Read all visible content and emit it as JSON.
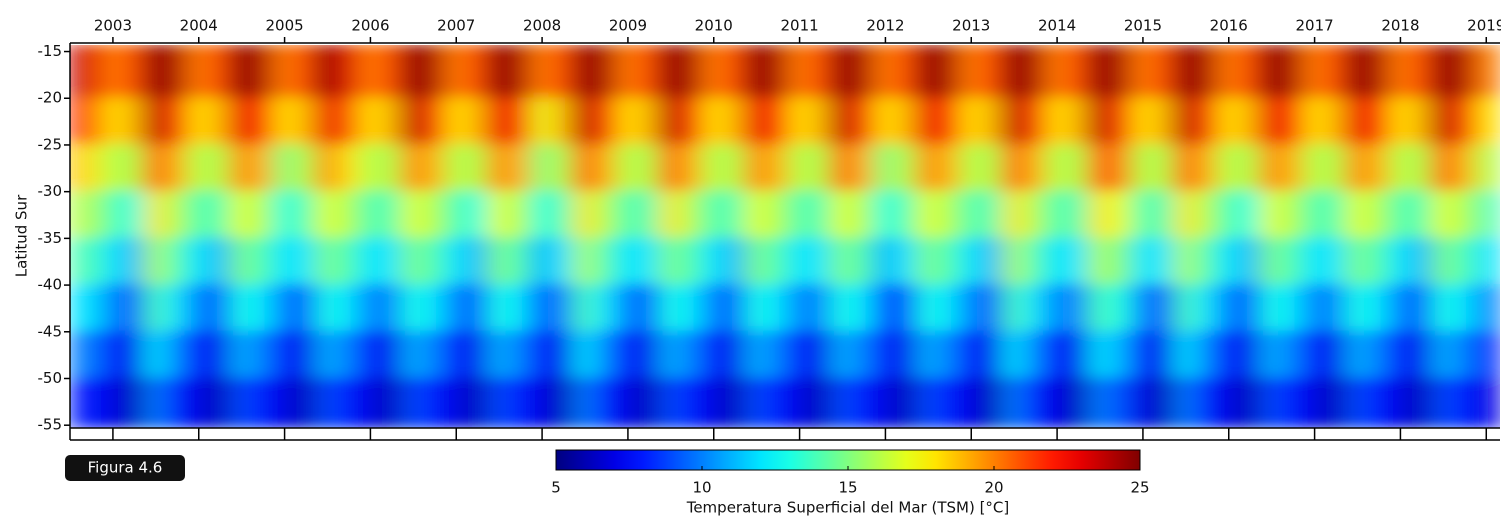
{
  "chart_data": {
    "type": "heatmap",
    "y_label": "Latitud Sur",
    "colorbar_label": "Temperatura Superficial del Mar (TSM) [°C]",
    "badge": "Figura 4.6",
    "colormap": "jet",
    "xlim": [
      2002.5,
      2019.16
    ],
    "xticks": [
      2003,
      2004,
      2005,
      2006,
      2007,
      2008,
      2009,
      2010,
      2011,
      2012,
      2013,
      2014,
      2015,
      2016,
      2017,
      2018,
      2019
    ],
    "ylim": [
      -55.3,
      -14.3
    ],
    "yticks": [
      -15,
      -20,
      -25,
      -30,
      -35,
      -40,
      -45,
      -50,
      -55
    ],
    "clim": [
      5,
      25
    ],
    "cticks": [
      5,
      10,
      15,
      20,
      25
    ],
    "y": [
      -17.5,
      -22.5,
      -27.5,
      -32.5,
      -37.5,
      -42.5,
      -47.5,
      -52.5
    ],
    "x": [
      2002.5,
      2002.75,
      2003.0,
      2003.25,
      2003.5,
      2003.75,
      2004.0,
      2004.25,
      2004.5,
      2004.75,
      2005.0,
      2005.25,
      2005.5,
      2005.75,
      2006.0,
      2006.25,
      2006.5,
      2006.75,
      2007.0,
      2007.25,
      2007.5,
      2007.75,
      2008.0,
      2008.25,
      2008.5,
      2008.75,
      2009.0,
      2009.25,
      2009.5,
      2009.75,
      2010.0,
      2010.25,
      2010.5,
      2010.75,
      2011.0,
      2011.25,
      2011.5,
      2011.75,
      2012.0,
      2012.25,
      2012.5,
      2012.75,
      2013.0,
      2013.25,
      2013.5,
      2013.75,
      2014.0,
      2014.25,
      2014.5,
      2014.75,
      2015.0,
      2015.25,
      2015.5,
      2015.75,
      2016.0,
      2016.25,
      2016.5,
      2016.75,
      2017.0,
      2017.25,
      2017.5,
      2017.75,
      2018.0,
      2018.25,
      2018.5,
      2018.75,
      2019.0
    ],
    "values": [
      [
        24,
        22,
        19,
        16,
        14,
        12,
        10,
        8
      ],
      [
        23,
        21,
        18,
        16,
        14,
        12,
        10,
        8
      ],
      [
        20,
        18,
        16,
        14,
        12,
        10,
        8,
        7
      ],
      [
        21,
        19,
        16,
        13,
        11,
        9,
        7,
        6
      ],
      [
        25,
        24,
        21,
        18,
        16,
        14,
        12,
        10
      ],
      [
        24,
        22,
        19,
        16,
        14,
        12,
        10,
        8
      ],
      [
        20,
        18,
        16,
        14,
        12,
        10,
        8,
        7
      ],
      [
        21,
        19,
        16,
        14,
        11,
        9,
        7,
        6
      ],
      [
        25,
        23,
        20,
        17,
        15,
        13,
        11,
        9
      ],
      [
        24,
        22,
        19,
        16,
        14,
        12,
        10,
        8
      ],
      [
        20,
        18,
        15,
        13,
        12,
        10,
        8,
        7
      ],
      [
        21,
        19,
        16,
        14,
        12,
        9,
        7,
        6
      ],
      [
        25,
        23,
        20,
        17,
        15,
        13,
        11,
        9
      ],
      [
        23,
        21,
        18,
        16,
        14,
        12,
        10,
        8
      ],
      [
        20,
        18,
        16,
        14,
        12,
        10,
        8,
        7
      ],
      [
        21,
        19,
        16,
        14,
        12,
        10,
        7,
        6
      ],
      [
        25,
        24,
        20,
        17,
        15,
        13,
        11,
        9
      ],
      [
        24,
        22,
        19,
        16,
        14,
        12,
        10,
        8
      ],
      [
        20,
        18,
        16,
        14,
        12,
        10,
        8,
        7
      ],
      [
        21,
        19,
        16,
        13,
        11,
        9,
        7,
        6
      ],
      [
        25,
        23,
        20,
        17,
        15,
        13,
        11,
        9
      ],
      [
        24,
        22,
        19,
        16,
        14,
        12,
        10,
        8
      ],
      [
        20,
        17,
        15,
        13,
        11,
        9,
        8,
        7
      ],
      [
        21,
        19,
        16,
        14,
        12,
        10,
        7,
        6
      ],
      [
        25,
        24,
        21,
        18,
        16,
        14,
        12,
        10
      ],
      [
        24,
        22,
        19,
        16,
        14,
        12,
        10,
        8
      ],
      [
        20,
        18,
        16,
        14,
        12,
        10,
        8,
        7
      ],
      [
        21,
        19,
        16,
        14,
        12,
        9,
        7,
        6
      ],
      [
        25,
        24,
        21,
        18,
        15,
        13,
        11,
        9
      ],
      [
        24,
        22,
        19,
        16,
        14,
        12,
        10,
        8
      ],
      [
        20,
        18,
        16,
        14,
        12,
        10,
        8,
        7
      ],
      [
        21,
        19,
        16,
        14,
        11,
        9,
        7,
        6
      ],
      [
        25,
        23,
        20,
        17,
        15,
        13,
        11,
        9
      ],
      [
        24,
        22,
        19,
        16,
        14,
        12,
        10,
        8
      ],
      [
        20,
        18,
        16,
        14,
        12,
        10,
        8,
        7
      ],
      [
        21,
        19,
        16,
        14,
        12,
        10,
        7,
        6
      ],
      [
        25,
        24,
        21,
        17,
        15,
        13,
        11,
        9
      ],
      [
        24,
        22,
        19,
        16,
        14,
        12,
        10,
        8
      ],
      [
        20,
        18,
        15,
        13,
        11,
        9,
        8,
        7
      ],
      [
        21,
        19,
        16,
        14,
        12,
        9,
        7,
        6
      ],
      [
        25,
        23,
        20,
        17,
        15,
        13,
        11,
        9
      ],
      [
        24,
        22,
        19,
        16,
        14,
        12,
        10,
        8
      ],
      [
        20,
        18,
        16,
        14,
        12,
        10,
        8,
        7
      ],
      [
        21,
        19,
        16,
        14,
        11,
        9,
        7,
        6
      ],
      [
        25,
        24,
        21,
        18,
        16,
        14,
        12,
        10
      ],
      [
        24,
        22,
        19,
        16,
        14,
        12,
        10,
        8
      ],
      [
        20,
        18,
        16,
        14,
        12,
        10,
        8,
        7
      ],
      [
        21,
        19,
        16,
        14,
        12,
        10,
        7,
        6
      ],
      [
        25,
        24,
        21,
        18,
        16,
        14,
        12,
        10
      ],
      [
        24,
        22,
        20,
        17,
        15,
        13,
        11,
        9
      ],
      [
        20,
        18,
        16,
        14,
        12,
        10,
        8,
        7
      ],
      [
        21,
        19,
        16,
        14,
        12,
        9,
        7,
        6
      ],
      [
        25,
        24,
        21,
        18,
        16,
        14,
        12,
        10
      ],
      [
        24,
        22,
        19,
        16,
        14,
        12,
        10,
        8
      ],
      [
        20,
        18,
        16,
        14,
        12,
        10,
        8,
        7
      ],
      [
        21,
        19,
        16,
        13,
        11,
        9,
        7,
        6
      ],
      [
        25,
        23,
        20,
        17,
        15,
        13,
        11,
        9
      ],
      [
        24,
        22,
        19,
        16,
        14,
        12,
        10,
        8
      ],
      [
        20,
        18,
        16,
        14,
        12,
        10,
        8,
        7
      ],
      [
        21,
        19,
        16,
        14,
        12,
        10,
        7,
        6
      ],
      [
        25,
        23,
        20,
        17,
        15,
        13,
        11,
        9
      ],
      [
        24,
        22,
        19,
        16,
        14,
        12,
        10,
        8
      ],
      [
        20,
        18,
        16,
        14,
        12,
        10,
        8,
        7
      ],
      [
        21,
        19,
        16,
        14,
        11,
        9,
        7,
        6
      ],
      [
        25,
        24,
        21,
        17,
        15,
        13,
        11,
        9
      ],
      [
        24,
        22,
        19,
        16,
        14,
        12,
        10,
        8
      ],
      [
        20,
        18,
        16,
        14,
        12,
        10,
        8,
        7
      ]
    ]
  }
}
